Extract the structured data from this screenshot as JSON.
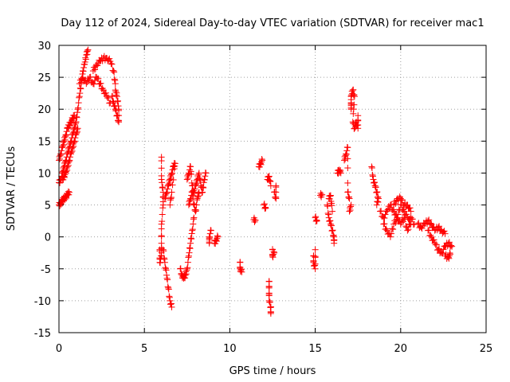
{
  "chart_data": {
    "type": "scatter",
    "title": "Day 112 of 2024, Sidereal Day-to-day VTEC variation (SDTVAR) for receiver mac1",
    "xlabel": "GPS time / hours",
    "ylabel": "SDTVAR / TECUs",
    "xlim": [
      0,
      25
    ],
    "ylim": [
      -15,
      30
    ],
    "xticks": [
      0,
      5,
      10,
      15,
      20,
      25
    ],
    "yticks": [
      -15,
      -10,
      -5,
      0,
      5,
      10,
      15,
      20,
      25,
      30
    ],
    "grid": true,
    "marker": "+",
    "color": "#ff0000",
    "series": [
      {
        "name": "SDTVAR",
        "segments": [
          [
            [
              0.0,
              12
            ],
            [
              0.1,
              13
            ],
            [
              0.2,
              14
            ],
            [
              0.3,
              15
            ],
            [
              0.4,
              16
            ],
            [
              0.5,
              17
            ],
            [
              0.6,
              17.5
            ],
            [
              0.7,
              18
            ],
            [
              0.8,
              18.5
            ],
            [
              0.9,
              19
            ]
          ],
          [
            [
              0.0,
              8.5
            ],
            [
              0.1,
              9
            ],
            [
              0.2,
              10
            ],
            [
              0.3,
              11
            ],
            [
              0.4,
              12
            ],
            [
              0.5,
              13
            ],
            [
              0.6,
              14
            ],
            [
              0.7,
              15
            ],
            [
              0.8,
              16
            ],
            [
              0.9,
              17
            ],
            [
              1.0,
              18
            ]
          ],
          [
            [
              0.2,
              9
            ],
            [
              0.3,
              9.5
            ],
            [
              0.4,
              10
            ],
            [
              0.5,
              11
            ],
            [
              0.6,
              12
            ],
            [
              0.7,
              13
            ],
            [
              0.8,
              14
            ],
            [
              0.9,
              15
            ],
            [
              1.0,
              16
            ],
            [
              1.1,
              17
            ]
          ],
          [
            [
              0.0,
              5
            ],
            [
              0.1,
              5.3
            ],
            [
              0.2,
              5.7
            ],
            [
              0.3,
              6
            ],
            [
              0.4,
              6.3
            ],
            [
              0.5,
              6.6
            ],
            [
              0.6,
              7
            ]
          ],
          [
            [
              1.0,
              18
            ],
            [
              1.1,
              20
            ],
            [
              1.2,
              22
            ],
            [
              1.3,
              24
            ],
            [
              1.4,
              26
            ],
            [
              1.5,
              27
            ],
            [
              1.6,
              28.5
            ],
            [
              1.7,
              29.3
            ]
          ],
          [
            [
              1.2,
              24
            ],
            [
              1.4,
              25
            ],
            [
              1.6,
              24
            ],
            [
              1.8,
              25
            ],
            [
              2.0,
              24
            ],
            [
              2.2,
              25
            ],
            [
              2.4,
              24
            ],
            [
              2.6,
              23
            ],
            [
              2.8,
              22
            ],
            [
              3.0,
              21
            ]
          ],
          [
            [
              2.0,
              26
            ],
            [
              2.2,
              27
            ],
            [
              2.4,
              27.5
            ],
            [
              2.6,
              28
            ],
            [
              2.8,
              28
            ],
            [
              3.0,
              27.5
            ],
            [
              3.2,
              26
            ],
            [
              3.3,
              24
            ]
          ],
          [
            [
              3.1,
              22
            ],
            [
              3.2,
              21
            ],
            [
              3.3,
              20
            ],
            [
              3.4,
              19
            ],
            [
              3.5,
              18
            ],
            [
              3.5,
              20
            ],
            [
              3.4,
              22
            ],
            [
              3.3,
              23
            ]
          ],
          [
            [
              5.9,
              -2
            ],
            [
              5.9,
              -4
            ],
            [
              6.0,
              -3
            ],
            [
              6.0,
              -1
            ],
            [
              6.0,
              2
            ],
            [
              6.1,
              5
            ],
            [
              6.1,
              7
            ],
            [
              6.0,
              9
            ],
            [
              6.0,
              12.5
            ]
          ],
          [
            [
              6.1,
              -2
            ],
            [
              6.2,
              -4
            ],
            [
              6.3,
              -6
            ],
            [
              6.4,
              -8
            ],
            [
              6.5,
              -10
            ],
            [
              6.6,
              -11
            ]
          ],
          [
            [
              6.2,
              6
            ],
            [
              6.3,
              7
            ],
            [
              6.4,
              8
            ],
            [
              6.5,
              9
            ],
            [
              6.6,
              10
            ],
            [
              6.7,
              11
            ],
            [
              6.8,
              11.5
            ],
            [
              6.6,
              7
            ],
            [
              6.5,
              5
            ]
          ],
          [
            [
              7.1,
              -5
            ],
            [
              7.2,
              -6
            ],
            [
              7.3,
              -6.5
            ],
            [
              7.4,
              -6
            ],
            [
              7.5,
              -5
            ],
            [
              7.6,
              -3
            ],
            [
              7.7,
              -1
            ],
            [
              7.8,
              1
            ],
            [
              7.9,
              3
            ]
          ],
          [
            [
              7.5,
              9
            ],
            [
              7.6,
              10
            ],
            [
              7.7,
              11
            ],
            [
              7.8,
              8
            ],
            [
              7.9,
              7
            ],
            [
              8.0,
              8
            ],
            [
              8.1,
              9
            ],
            [
              8.2,
              10
            ],
            [
              8.3,
              8
            ],
            [
              8.4,
              7
            ],
            [
              8.5,
              9
            ],
            [
              8.6,
              10
            ]
          ],
          [
            [
              7.6,
              5
            ],
            [
              7.7,
              6
            ],
            [
              7.8,
              7
            ],
            [
              7.9,
              5
            ],
            [
              8.0,
              4
            ],
            [
              8.1,
              6
            ],
            [
              8.2,
              7
            ]
          ],
          [
            [
              8.8,
              -1
            ],
            [
              8.8,
              0
            ],
            [
              8.9,
              1
            ]
          ],
          [
            [
              9.1,
              -1
            ],
            [
              9.2,
              -0.5
            ],
            [
              9.3,
              0
            ]
          ],
          [
            [
              10.6,
              -4
            ],
            [
              10.6,
              -5
            ],
            [
              10.7,
              -5.5
            ]
          ],
          [
            [
              11.4,
              2.7
            ],
            [
              11.5,
              2.6
            ]
          ],
          [
            [
              11.7,
              11
            ],
            [
              11.8,
              11.5
            ],
            [
              11.9,
              12
            ]
          ],
          [
            [
              12.0,
              5
            ],
            [
              12.1,
              4.5
            ]
          ],
          [
            [
              12.2,
              9
            ],
            [
              12.3,
              9.5
            ],
            [
              12.4,
              8
            ]
          ],
          [
            [
              12.3,
              -7
            ],
            [
              12.3,
              -8
            ],
            [
              12.3,
              -10
            ],
            [
              12.4,
              -11
            ],
            [
              12.4,
              -12
            ]
          ],
          [
            [
              12.5,
              -2
            ],
            [
              12.5,
              -3
            ],
            [
              12.6,
              -2.5
            ]
          ],
          [
            [
              12.6,
              7
            ],
            [
              12.7,
              6
            ],
            [
              12.7,
              8
            ]
          ],
          [
            [
              14.9,
              -3
            ],
            [
              14.9,
              -4
            ],
            [
              15.0,
              -5
            ],
            [
              15.0,
              -2
            ]
          ],
          [
            [
              15.0,
              3
            ],
            [
              15.1,
              2.5
            ]
          ],
          [
            [
              15.3,
              6.5
            ],
            [
              15.4,
              6.6
            ]
          ],
          [
            [
              15.7,
              5
            ],
            [
              15.8,
              3
            ],
            [
              15.9,
              2
            ],
            [
              16.0,
              1
            ],
            [
              16.1,
              0
            ],
            [
              16.1,
              -1
            ]
          ],
          [
            [
              15.8,
              6
            ],
            [
              15.9,
              6.5
            ],
            [
              16.0,
              4
            ]
          ],
          [
            [
              16.3,
              10
            ],
            [
              16.4,
              10.5
            ],
            [
              16.5,
              10
            ]
          ],
          [
            [
              16.7,
              12
            ],
            [
              16.8,
              13
            ],
            [
              16.9,
              14
            ],
            [
              16.9,
              7
            ],
            [
              17.0,
              6
            ]
          ],
          [
            [
              17.1,
              20
            ],
            [
              17.1,
              21
            ],
            [
              17.1,
              22
            ],
            [
              17.2,
              23
            ],
            [
              17.3,
              22
            ],
            [
              17.2,
              18
            ],
            [
              17.3,
              17
            ],
            [
              17.4,
              18
            ],
            [
              17.5,
              17
            ],
            [
              17.5,
              19
            ]
          ],
          [
            [
              17.0,
              4
            ],
            [
              17.1,
              5
            ]
          ],
          [
            [
              18.3,
              11
            ],
            [
              18.4,
              9
            ],
            [
              18.5,
              8
            ],
            [
              18.6,
              7
            ],
            [
              18.7,
              6
            ],
            [
              18.6,
              5
            ]
          ],
          [
            [
              18.8,
              4
            ],
            [
              19.0,
              3
            ],
            [
              19.2,
              4
            ],
            [
              19.4,
              5
            ],
            [
              19.6,
              4
            ],
            [
              19.8,
              3
            ],
            [
              20.0,
              5
            ],
            [
              20.2,
              4
            ],
            [
              20.4,
              3
            ],
            [
              20.6,
              2
            ]
          ],
          [
            [
              19.0,
              2
            ],
            [
              19.2,
              1
            ],
            [
              19.4,
              0
            ],
            [
              19.6,
              2
            ],
            [
              19.8,
              3
            ],
            [
              20.0,
              2
            ],
            [
              20.2,
              3
            ],
            [
              20.4,
              1
            ],
            [
              20.6,
              3
            ],
            [
              20.8,
              2
            ]
          ],
          [
            [
              19.6,
              5
            ],
            [
              19.8,
              6
            ],
            [
              20.0,
              6
            ],
            [
              20.2,
              5
            ],
            [
              20.4,
              5
            ],
            [
              20.6,
              4
            ]
          ],
          [
            [
              21.0,
              2
            ],
            [
              21.2,
              1.5
            ],
            [
              21.4,
              2
            ],
            [
              21.6,
              2.5
            ],
            [
              21.8,
              2
            ],
            [
              22.0,
              1
            ],
            [
              22.2,
              1.5
            ],
            [
              22.4,
              1
            ],
            [
              22.6,
              0.5
            ]
          ],
          [
            [
              21.6,
              1
            ],
            [
              21.8,
              0
            ],
            [
              22.0,
              -1
            ],
            [
              22.2,
              -2
            ],
            [
              22.4,
              -2.5
            ],
            [
              22.6,
              -1.5
            ],
            [
              22.8,
              -1
            ],
            [
              23.0,
              -1.5
            ]
          ],
          [
            [
              22.6,
              -3
            ],
            [
              22.8,
              -3.2
            ],
            [
              22.9,
              -2.7
            ]
          ]
        ]
      }
    ]
  }
}
